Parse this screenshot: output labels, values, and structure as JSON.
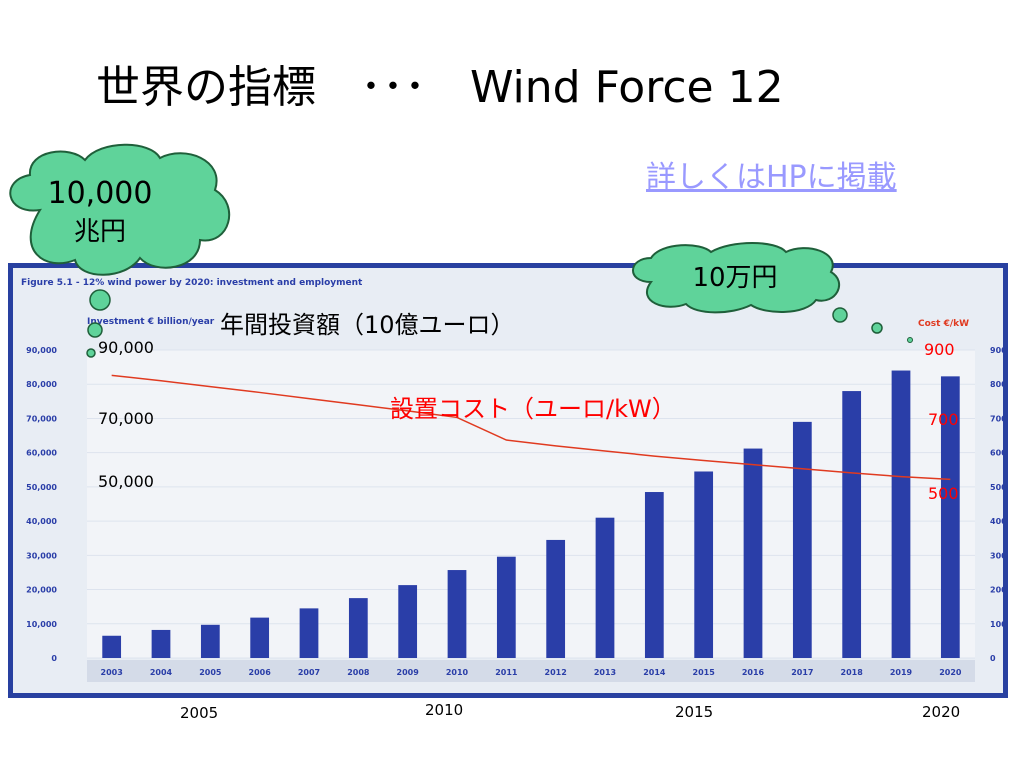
{
  "slide": {
    "title": "世界の指標　･･･　Wind Force 12",
    "link": "詳しくはHPに掲載"
  },
  "callouts": {
    "total_line1": "10,000",
    "total_line2": "兆円",
    "cost": "10万円"
  },
  "overlay": {
    "investment_title": "年間投資額（10億ユーロ）",
    "cost_title": "設置コスト（ユーロ/kW）",
    "left_values": [
      "90,000",
      "70,000",
      "50,000"
    ],
    "right_values": [
      "900",
      "700",
      "500"
    ],
    "bottom_years": [
      "2005",
      "2010",
      "2015",
      "2020"
    ]
  },
  "colors": {
    "bar": "#2a3ea8",
    "cost_line": "#e03a20",
    "frame": "#2840a0",
    "cloud": "#5fd39a",
    "link": "#9999ff",
    "red_text": "#ff0000"
  },
  "chart_data": {
    "type": "bar",
    "title": "Figure 5.1 - 12% wind power by 2020: investment and employment",
    "ylabel": "Investment € billion/year",
    "y2label": "Cost €/kW",
    "ylim": [
      0,
      90000
    ],
    "y2lim": [
      0,
      900
    ],
    "yticks": [
      "0",
      "10,000",
      "20,000",
      "30,000",
      "40,000",
      "50,000",
      "60,000",
      "70,000",
      "80,000",
      "90,000"
    ],
    "y2ticks": [
      "0",
      "100",
      "200",
      "300",
      "400",
      "500",
      "600",
      "700",
      "800",
      "900"
    ],
    "categories": [
      "2003",
      "2004",
      "2005",
      "2006",
      "2007",
      "2008",
      "2009",
      "2010",
      "2011",
      "2012",
      "2013",
      "2014",
      "2015",
      "2016",
      "2017",
      "2018",
      "2019",
      "2020"
    ],
    "series": [
      {
        "name": "Investment",
        "axis": "left",
        "type": "bar",
        "values": [
          6500,
          8200,
          9700,
          11800,
          14500,
          17500,
          21300,
          25700,
          29600,
          34500,
          41000,
          48500,
          54500,
          61200,
          69000,
          78000,
          84000,
          82300
        ]
      },
      {
        "name": "Cost",
        "axis": "right",
        "type": "line",
        "values": [
          826,
          810,
          793,
          776,
          758,
          740,
          722,
          703,
          637,
          620,
          605,
          590,
          577,
          565,
          553,
          541,
          530,
          522
        ]
      }
    ]
  }
}
